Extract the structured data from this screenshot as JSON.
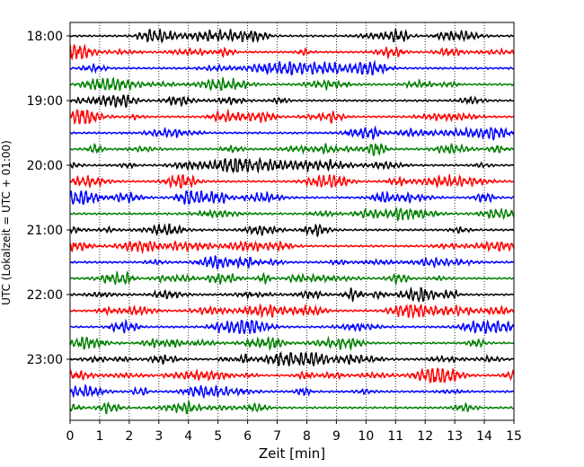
{
  "chart_data": {
    "type": "line",
    "title": "",
    "xlabel": "Zeit  [min]",
    "ylabel": "UTC (Lokalzeit = UTC + 01:00)",
    "xlim": [
      0,
      15
    ],
    "x_ticks": [
      "0",
      "1",
      "2",
      "3",
      "4",
      "5",
      "6",
      "7",
      "8",
      "9",
      "10",
      "11",
      "12",
      "13",
      "14",
      "15"
    ],
    "y_tick_labels": [
      "18:00",
      "19:00",
      "20:00",
      "21:00",
      "22:00",
      "23:00"
    ],
    "trace_interval_min": 15,
    "start_time": "18:00",
    "trace_count": 24,
    "trace_colors": [
      "#000000",
      "#ff0000",
      "#0000ff",
      "#008000"
    ],
    "grid": "vertical-dotted",
    "legend": "none"
  }
}
